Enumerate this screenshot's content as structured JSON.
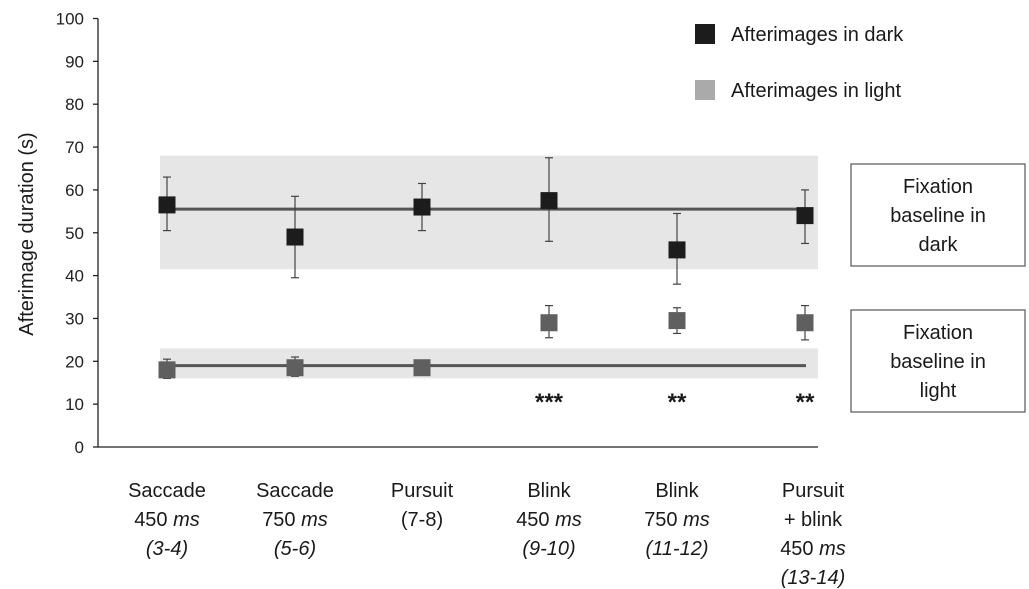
{
  "chart_data": {
    "type": "scatter",
    "ylabel": "Afterimage duration (s)",
    "xlabel": "",
    "ylim": [
      0,
      100
    ],
    "yticks": [
      0,
      10,
      20,
      30,
      40,
      50,
      60,
      70,
      80,
      90,
      100
    ],
    "grid": false,
    "legend_position": "top-right",
    "categories": [
      [
        {
          "t": "Saccade"
        },
        {
          "t": "450 ",
          "i": "ms"
        },
        {
          "i": "(3-4)"
        }
      ],
      [
        {
          "t": "Saccade"
        },
        {
          "t": "750 ",
          "i": "ms"
        },
        {
          "i": "(5-6)"
        }
      ],
      [
        {
          "t": "Pursuit"
        },
        {
          "t": "(7-8)"
        }
      ],
      [
        {
          "t": "Blink"
        },
        {
          "t": "450 ",
          "i": "ms"
        },
        {
          "i": "(9-10)"
        }
      ],
      [
        {
          "t": "Blink"
        },
        {
          "t": "750 ",
          "i": "ms"
        },
        {
          "i": "(11-12)"
        }
      ],
      [
        {
          "t": "Pursuit"
        },
        {
          "t": "+ blink"
        },
        {
          "t": "450 ",
          "i": "ms"
        },
        {
          "i": "(13-14)"
        }
      ]
    ],
    "series": [
      {
        "name": "Afterimages in dark",
        "color": "#1c1c1c",
        "values": [
          56.5,
          49,
          56,
          57.5,
          46,
          54
        ],
        "err_low": [
          50.5,
          39.5,
          50.5,
          48,
          38,
          47.5
        ],
        "err_high": [
          63,
          58.5,
          61.5,
          67.5,
          54.5,
          60
        ]
      },
      {
        "name": "Afterimages in light",
        "color": "#aaaaaa",
        "marker_color": "#5f5f5f",
        "values": [
          18,
          18.5,
          18.5,
          29,
          29.5,
          29
        ],
        "err_low": [
          16,
          16.5,
          17,
          25.5,
          26.5,
          25
        ],
        "err_high": [
          20.5,
          21,
          20,
          33,
          32.5,
          33
        ]
      }
    ],
    "baselines": [
      {
        "label_lines": [
          "Fixation",
          "baseline in",
          "dark"
        ],
        "value": 55.5,
        "band": [
          41.5,
          68
        ]
      },
      {
        "label_lines": [
          "Fixation",
          "baseline in",
          "light"
        ],
        "value": 19,
        "band": [
          16,
          23
        ]
      }
    ],
    "annotations": [
      {
        "category_index": 3,
        "text": "***"
      },
      {
        "category_index": 4,
        "text": "**"
      },
      {
        "category_index": 5,
        "text": "**"
      }
    ]
  }
}
